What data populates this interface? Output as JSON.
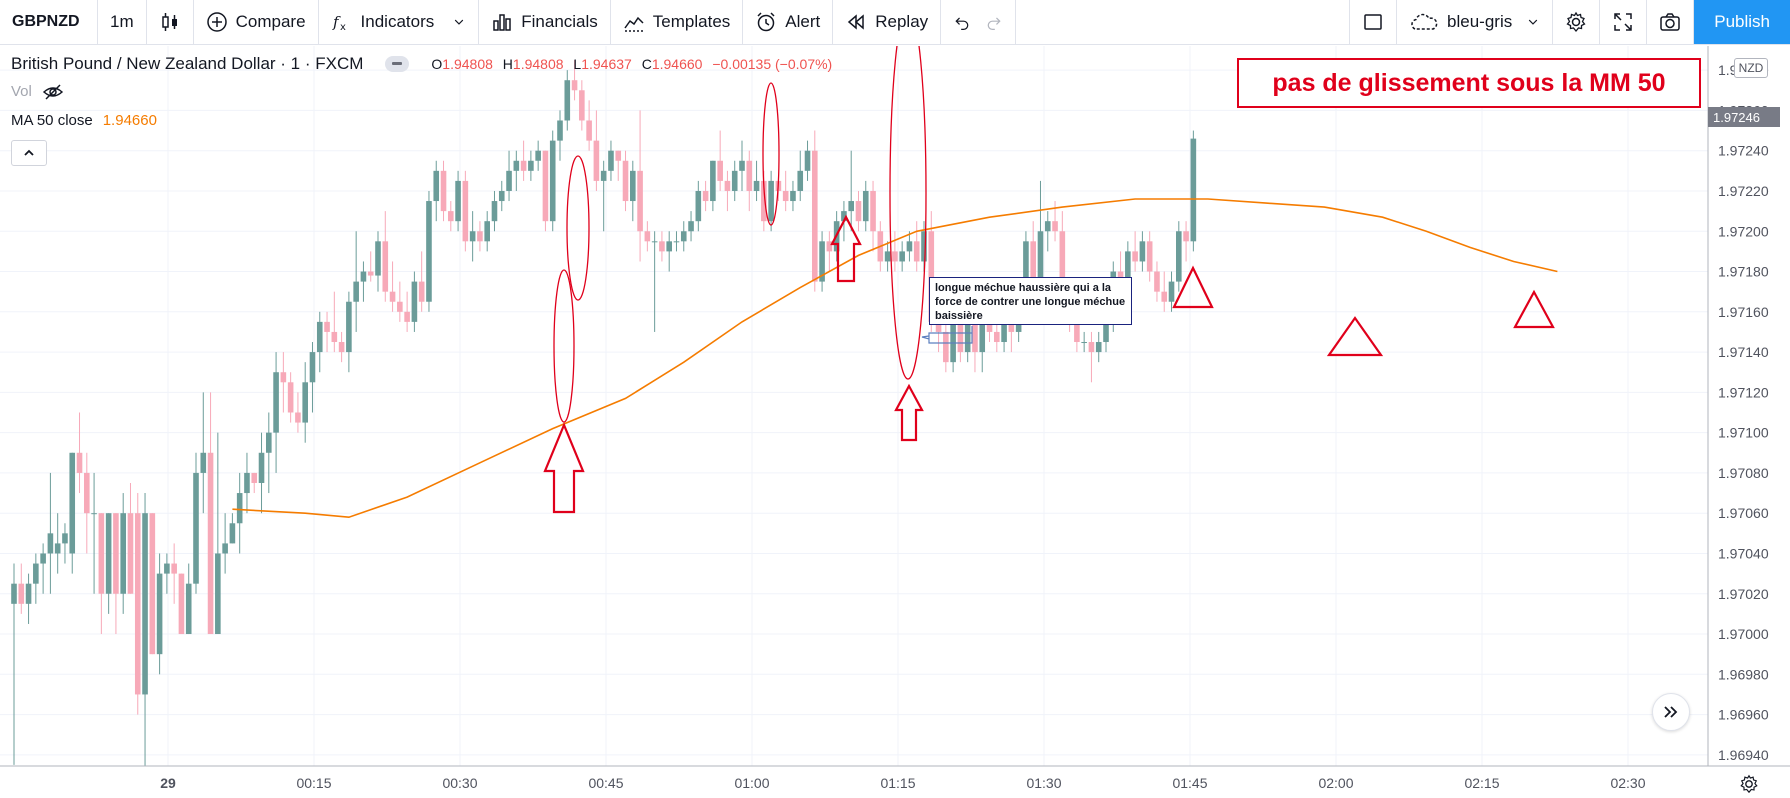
{
  "toolbar": {
    "symbol": "GBPNZD",
    "interval": "1m",
    "compare": "Compare",
    "indicators": "Indicators",
    "financials": "Financials",
    "templates": "Templates",
    "alert": "Alert",
    "replay": "Replay",
    "theme": "bleu-gris",
    "publish": "Publish",
    "icons": [
      "candles-icon",
      "plus-circle-icon",
      "fx-icon",
      "chevron-down-icon",
      "bar-chart-icon",
      "templates-icon",
      "alarm-clock-icon",
      "replay-icon",
      "undo-icon",
      "redo-icon",
      "rectangle-icon",
      "cloud-icon",
      "gear-icon",
      "fullscreen-icon",
      "camera-icon"
    ]
  },
  "legend": {
    "title": "British Pound / New Zealand Dollar · 1 · FXCM",
    "o_label": "O",
    "o": "1.94808",
    "h_label": "H",
    "h": "1.94808",
    "l_label": "L",
    "l": "1.94637",
    "c_label": "C",
    "c": "1.94660",
    "change": "−0.00135 (−0.07%)",
    "vol": "Vol",
    "ma_label": "MA 50 close",
    "ma_value": "1.94660"
  },
  "annotations": {
    "headline": "pas de glissement sous la MM 50",
    "callout": "longue méchue haussière qui a la force de contrer une longue méchue baissière"
  },
  "price_axis": {
    "currency": "NZD",
    "last_price": "1.97246",
    "ticks": [
      "1.97280",
      "1.97260",
      "1.97240",
      "1.97220",
      "1.97200",
      "1.97180",
      "1.97160",
      "1.97140",
      "1.97120",
      "1.97100",
      "1.97080",
      "1.97060",
      "1.97040",
      "1.97020",
      "1.97000",
      "1.96980",
      "1.96960",
      "1.96940"
    ]
  },
  "time_axis": {
    "ticks": [
      "29",
      "00:15",
      "00:30",
      "00:45",
      "01:00",
      "01:15",
      "01:30",
      "01:45",
      "02:00",
      "02:15",
      "02:30"
    ]
  },
  "colors": {
    "up": "#6b9c99",
    "down": "#f7a9b8",
    "ma": "#f57c00",
    "annotation": "#e0001b"
  },
  "chart_data": {
    "type": "candlestick",
    "symbol": "GBPNZD",
    "interval": "1m",
    "ylim": [
      1.9693,
      1.9729
    ],
    "x_start": "00:03",
    "candles": [
      [
        1.97015,
        1.97035,
        1.96935,
        1.97025
      ],
      [
        1.97025,
        1.97035,
        1.9701,
        1.97015
      ],
      [
        1.97015,
        1.9703,
        1.97005,
        1.97025
      ],
      [
        1.97025,
        1.9704,
        1.97015,
        1.97035
      ],
      [
        1.97035,
        1.97045,
        1.9702,
        1.9704
      ],
      [
        1.9704,
        1.9708,
        1.9702,
        1.9705
      ],
      [
        1.9704,
        1.9706,
        1.9703,
        1.97045
      ],
      [
        1.97045,
        1.97055,
        1.97035,
        1.9705
      ],
      [
        1.9704,
        1.9709,
        1.9703,
        1.9709
      ],
      [
        1.9709,
        1.9711,
        1.9707,
        1.9708
      ],
      [
        1.9708,
        1.9709,
        1.9704,
        1.9706
      ],
      [
        1.9706,
        1.9708,
        1.9702,
        1.9706
      ],
      [
        1.9706,
        1.9706,
        1.97,
        1.9702
      ],
      [
        1.9702,
        1.9706,
        1.9701,
        1.9706
      ],
      [
        1.9706,
        1.9706,
        1.97,
        1.9702
      ],
      [
        1.9702,
        1.9707,
        1.9701,
        1.9706
      ],
      [
        1.9706,
        1.97075,
        1.9702,
        1.9702
      ],
      [
        1.9706,
        1.9707,
        1.9696,
        1.9697
      ],
      [
        1.9697,
        1.9707,
        1.9693,
        1.9706
      ],
      [
        1.9706,
        1.9706,
        1.9699,
        1.9699
      ],
      [
        1.9699,
        1.9704,
        1.9698,
        1.9703
      ],
      [
        1.9703,
        1.9704,
        1.9702,
        1.97035
      ],
      [
        1.97035,
        1.97045,
        1.97015,
        1.9703
      ],
      [
        1.9703,
        1.9703,
        1.97,
        1.97
      ],
      [
        1.97,
        1.97035,
        1.97,
        1.97025
      ],
      [
        1.97025,
        1.9709,
        1.9702,
        1.9708
      ],
      [
        1.9708,
        1.9712,
        1.9706,
        1.9709
      ],
      [
        1.9709,
        1.9712,
        1.97,
        1.97
      ],
      [
        1.97,
        1.971,
        1.97,
        1.9704
      ],
      [
        1.9704,
        1.9706,
        1.9703,
        1.97045
      ],
      [
        1.97045,
        1.9706,
        1.97045,
        1.97055
      ],
      [
        1.97055,
        1.9708,
        1.9704,
        1.9707
      ],
      [
        1.9707,
        1.9709,
        1.9706,
        1.9708
      ],
      [
        1.9708,
        1.9708,
        1.9707,
        1.97075
      ],
      [
        1.97075,
        1.971,
        1.9706,
        1.9709
      ],
      [
        1.9709,
        1.9711,
        1.9707,
        1.971
      ],
      [
        1.971,
        1.9714,
        1.9708,
        1.9713
      ],
      [
        1.9713,
        1.9714,
        1.9711,
        1.97125
      ],
      [
        1.97125,
        1.9713,
        1.97105,
        1.9711
      ],
      [
        1.9711,
        1.9712,
        1.971,
        1.97105
      ],
      [
        1.97105,
        1.97135,
        1.97095,
        1.97125
      ],
      [
        1.97125,
        1.97145,
        1.9711,
        1.9714
      ],
      [
        1.9714,
        1.9716,
        1.9713,
        1.97155
      ],
      [
        1.97155,
        1.9716,
        1.9714,
        1.9715
      ],
      [
        1.9715,
        1.9717,
        1.9714,
        1.97145
      ],
      [
        1.97145,
        1.9715,
        1.97135,
        1.9714
      ],
      [
        1.9714,
        1.9717,
        1.9713,
        1.97165
      ],
      [
        1.97165,
        1.972,
        1.9715,
        1.97175
      ],
      [
        1.97175,
        1.97185,
        1.97165,
        1.9718
      ],
      [
        1.9718,
        1.9719,
        1.97175,
        1.97178
      ],
      [
        1.97178,
        1.972,
        1.9717,
        1.97195
      ],
      [
        1.97195,
        1.9721,
        1.97165,
        1.9717
      ],
      [
        1.9717,
        1.97185,
        1.9716,
        1.97165
      ],
      [
        1.97165,
        1.97175,
        1.97155,
        1.9716
      ],
      [
        1.9716,
        1.9717,
        1.9715,
        1.97155
      ],
      [
        1.97155,
        1.9718,
        1.9715,
        1.97175
      ],
      [
        1.97175,
        1.9719,
        1.9716,
        1.97165
      ],
      [
        1.97165,
        1.9722,
        1.9716,
        1.97215
      ],
      [
        1.97215,
        1.97235,
        1.97205,
        1.9723
      ],
      [
        1.9723,
        1.97235,
        1.97205,
        1.9721
      ],
      [
        1.9721,
        1.97215,
        1.972,
        1.97205
      ],
      [
        1.97205,
        1.9723,
        1.972,
        1.97225
      ],
      [
        1.97225,
        1.9723,
        1.9719,
        1.97195
      ],
      [
        1.97195,
        1.9721,
        1.97185,
        1.972
      ],
      [
        1.972,
        1.97205,
        1.9719,
        1.97195
      ],
      [
        1.97195,
        1.9721,
        1.9719,
        1.97205
      ],
      [
        1.97205,
        1.9722,
        1.972,
        1.97215
      ],
      [
        1.97215,
        1.97225,
        1.9721,
        1.9722
      ],
      [
        1.9722,
        1.9724,
        1.97215,
        1.9723
      ],
      [
        1.9723,
        1.9724,
        1.9722,
        1.97235
      ],
      [
        1.97235,
        1.97245,
        1.97225,
        1.9723
      ],
      [
        1.9723,
        1.9724,
        1.97225,
        1.97235
      ],
      [
        1.97235,
        1.97245,
        1.9723,
        1.9724
      ],
      [
        1.9724,
        1.9724,
        1.972,
        1.97205
      ],
      [
        1.97205,
        1.9725,
        1.972,
        1.97245
      ],
      [
        1.97245,
        1.9726,
        1.97235,
        1.97255
      ],
      [
        1.97255,
        1.9728,
        1.9725,
        1.97275
      ],
      [
        1.97275,
        1.97285,
        1.97265,
        1.9727
      ],
      [
        1.9727,
        1.97275,
        1.9725,
        1.97255
      ],
      [
        1.97255,
        1.97265,
        1.9724,
        1.97245
      ],
      [
        1.97245,
        1.9726,
        1.9722,
        1.97225
      ],
      [
        1.97225,
        1.97235,
        1.972,
        1.9723
      ],
      [
        1.9723,
        1.97245,
        1.97225,
        1.9724
      ],
      [
        1.9724,
        1.9724,
        1.97225,
        1.97235
      ],
      [
        1.97235,
        1.9724,
        1.9721,
        1.97215
      ],
      [
        1.97215,
        1.97235,
        1.97205,
        1.9723
      ],
      [
        1.9723,
        1.9726,
        1.97185,
        1.972
      ],
      [
        1.972,
        1.97205,
        1.9719,
        1.97195
      ],
      [
        1.97195,
        1.972,
        1.9715,
        1.97195
      ],
      [
        1.97195,
        1.972,
        1.97185,
        1.9719
      ],
      [
        1.9719,
        1.972,
        1.9718,
        1.97195
      ],
      [
        1.97195,
        1.972,
        1.9719,
        1.97195
      ],
      [
        1.97195,
        1.97205,
        1.9719,
        1.972
      ],
      [
        1.972,
        1.9721,
        1.97195,
        1.97205
      ],
      [
        1.97205,
        1.97225,
        1.972,
        1.9722
      ],
      [
        1.9722,
        1.97225,
        1.9721,
        1.97215
      ],
      [
        1.97215,
        1.97235,
        1.9721,
        1.97235
      ],
      [
        1.97235,
        1.9725,
        1.9722,
        1.97225
      ],
      [
        1.97225,
        1.9723,
        1.9721,
        1.9722
      ],
      [
        1.9722,
        1.97235,
        1.97215,
        1.9723
      ],
      [
        1.9723,
        1.97245,
        1.9722,
        1.97235
      ],
      [
        1.97235,
        1.9724,
        1.9721,
        1.9722
      ],
      [
        1.9722,
        1.97235,
        1.97215,
        1.97225
      ],
      [
        1.97225,
        1.9723,
        1.972,
        1.97205
      ],
      [
        1.97205,
        1.9723,
        1.972,
        1.97225
      ],
      [
        1.97225,
        1.97225,
        1.97215,
        1.9722
      ],
      [
        1.9722,
        1.9723,
        1.9721,
        1.97215
      ],
      [
        1.97215,
        1.97225,
        1.9721,
        1.9722
      ],
      [
        1.9722,
        1.9724,
        1.97215,
        1.9723
      ],
      [
        1.9723,
        1.97245,
        1.97225,
        1.9724
      ],
      [
        1.9724,
        1.9725,
        1.9717,
        1.97175
      ],
      [
        1.97175,
        1.972,
        1.9717,
        1.97195
      ],
      [
        1.97195,
        1.972,
        1.9718,
        1.9719
      ],
      [
        1.9719,
        1.9721,
        1.97185,
        1.97205
      ],
      [
        1.97205,
        1.97215,
        1.97195,
        1.9721
      ],
      [
        1.9721,
        1.9724,
        1.972,
        1.97215
      ],
      [
        1.97215,
        1.9722,
        1.972,
        1.97205
      ],
      [
        1.97205,
        1.97225,
        1.972,
        1.9722
      ],
      [
        1.9722,
        1.97225,
        1.9719,
        1.972
      ],
      [
        1.972,
        1.97205,
        1.9718,
        1.97185
      ],
      [
        1.97185,
        1.97195,
        1.9718,
        1.9719
      ],
      [
        1.9719,
        1.972,
        1.9718,
        1.97185
      ],
      [
        1.97185,
        1.97195,
        1.9718,
        1.9719
      ],
      [
        1.9719,
        1.972,
        1.97185,
        1.97195
      ],
      [
        1.97195,
        1.97205,
        1.9718,
        1.97185
      ],
      [
        1.97185,
        1.97205,
        1.9718,
        1.972
      ],
      [
        1.972,
        1.9721,
        1.9715,
        1.97155
      ],
      [
        1.97155,
        1.97165,
        1.9714,
        1.9715
      ],
      [
        1.9715,
        1.9716,
        1.9713,
        1.97135
      ],
      [
        1.97135,
        1.9716,
        1.9713,
        1.97155
      ],
      [
        1.97155,
        1.9716,
        1.97135,
        1.9714
      ],
      [
        1.9714,
        1.9716,
        1.97135,
        1.97155
      ],
      [
        1.97155,
        1.9716,
        1.9713,
        1.9714
      ],
      [
        1.9714,
        1.9716,
        1.9713,
        1.97155
      ],
      [
        1.97155,
        1.97165,
        1.97145,
        1.9715
      ],
      [
        1.9715,
        1.9716,
        1.9714,
        1.97145
      ],
      [
        1.97145,
        1.9716,
        1.9714,
        1.97155
      ],
      [
        1.97155,
        1.97165,
        1.9714,
        1.9715
      ],
      [
        1.9715,
        1.97165,
        1.97145,
        1.9716
      ],
      [
        1.9716,
        1.972,
        1.97155,
        1.97195
      ],
      [
        1.97195,
        1.97205,
        1.9717,
        1.97175
      ],
      [
        1.97175,
        1.97225,
        1.9717,
        1.972
      ],
      [
        1.972,
        1.9721,
        1.9719,
        1.97205
      ],
      [
        1.97205,
        1.97215,
        1.97195,
        1.972
      ],
      [
        1.972,
        1.9721,
        1.9716,
        1.97165
      ],
      [
        1.97165,
        1.9717,
        1.9715,
        1.9716
      ],
      [
        1.9716,
        1.97165,
        1.9714,
        1.97145
      ],
      [
        1.97145,
        1.9715,
        1.9714,
        1.97145
      ],
      [
        1.97145,
        1.9715,
        1.97125,
        1.9714
      ],
      [
        1.9714,
        1.9715,
        1.97135,
        1.97145
      ],
      [
        1.97145,
        1.9716,
        1.9714,
        1.97155
      ],
      [
        1.97155,
        1.97185,
        1.9715,
        1.9718
      ],
      [
        1.9718,
        1.9719,
        1.9717,
        1.97175
      ],
      [
        1.97175,
        1.97195,
        1.9717,
        1.9719
      ],
      [
        1.9719,
        1.972,
        1.9718,
        1.97185
      ],
      [
        1.97185,
        1.972,
        1.9718,
        1.97195
      ],
      [
        1.97195,
        1.972,
        1.97175,
        1.9718
      ],
      [
        1.9718,
        1.97185,
        1.97165,
        1.9717
      ],
      [
        1.9717,
        1.9718,
        1.9716,
        1.97165
      ],
      [
        1.97165,
        1.9718,
        1.9716,
        1.97175
      ],
      [
        1.97175,
        1.97205,
        1.9717,
        1.972
      ],
      [
        1.972,
        1.97205,
        1.97185,
        1.97195
      ],
      [
        1.97195,
        1.9725,
        1.9719,
        1.97246
      ]
    ],
    "ma50": [
      [
        30,
        1.97062
      ],
      [
        40,
        1.9706
      ],
      [
        46,
        1.97058
      ],
      [
        54,
        1.97068
      ],
      [
        64,
        1.97085
      ],
      [
        74,
        1.97102
      ],
      [
        84,
        1.97117
      ],
      [
        92,
        1.97135
      ],
      [
        100,
        1.97155
      ],
      [
        108,
        1.97172
      ],
      [
        116,
        1.97188
      ],
      [
        124,
        1.972
      ],
      [
        134,
        1.97207
      ],
      [
        144,
        1.97212
      ],
      [
        154,
        1.97216
      ],
      [
        164,
        1.97216
      ],
      [
        172,
        1.97214
      ],
      [
        180,
        1.97212
      ],
      [
        188,
        1.97207
      ],
      [
        194,
        1.972
      ],
      [
        200,
        1.97192
      ],
      [
        206,
        1.97185
      ],
      [
        212,
        1.9718
      ]
    ]
  }
}
